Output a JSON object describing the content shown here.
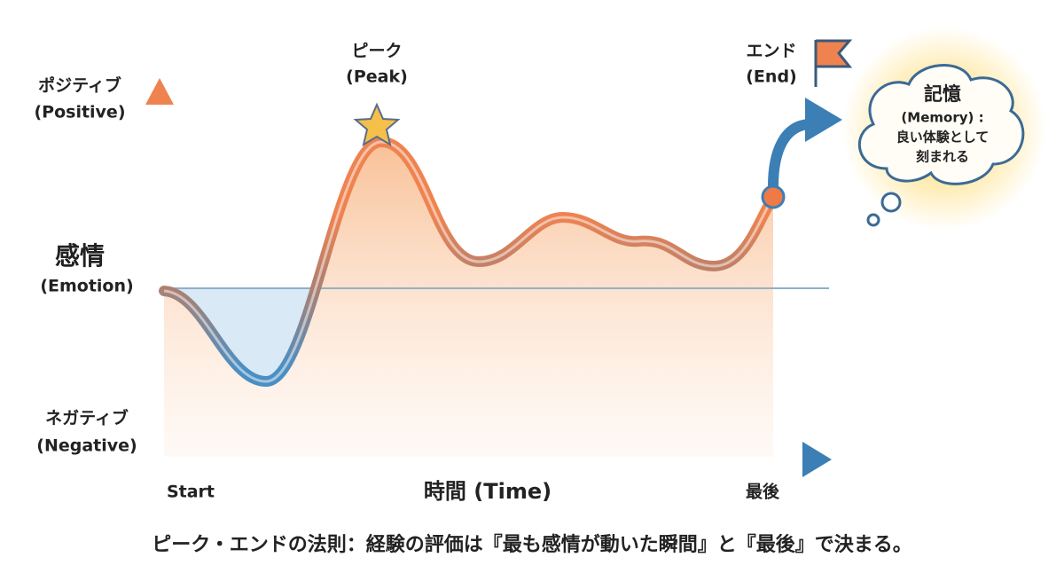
{
  "axis": {
    "positive": "ポジティブ",
    "positive_en": "(Positive)",
    "emotion": "感情",
    "emotion_en": "(Emotion)",
    "negative": "ネガティブ",
    "negative_en": "(Negative)",
    "start": "Start",
    "time": "時間 (Time)",
    "last": "最後"
  },
  "peak": {
    "label": "ピーク",
    "label_en": "(Peak)"
  },
  "end": {
    "label": "エンド",
    "label_en": "(End)"
  },
  "memory": {
    "title": "記憶",
    "subtitle": "(Memory) :",
    "line1": "良い体験として",
    "line2": "刻まれる"
  },
  "caption": "ピーク・エンドの法則：経験の評価は『最も感情が動いた瞬間』と『最後』で決まる。"
}
